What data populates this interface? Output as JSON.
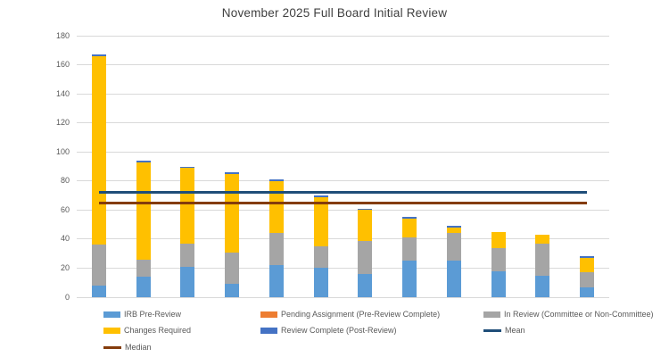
{
  "chart_data": {
    "type": "bar",
    "stacked": true,
    "title": "November 2025 Full Board Initial Review",
    "categories": [
      "",
      "",
      "",
      "",
      "",
      "",
      "",
      "",
      "",
      "",
      "",
      ""
    ],
    "series": [
      {
        "name": "IRB Pre-Review",
        "color": "#5B9BD5",
        "swatch": "rect",
        "values": [
          8,
          14,
          21,
          9,
          22,
          20,
          16,
          25,
          25,
          18,
          15,
          7
        ]
      },
      {
        "name": "Pending Assignment (Pre-Review Complete)",
        "color": "#ED7D31",
        "swatch": "rect",
        "values": [
          0,
          0,
          0,
          0,
          0,
          0,
          0,
          0,
          0,
          0,
          0,
          0
        ]
      },
      {
        "name": "In Review (Committee or Non-Committee)",
        "color": "#A5A5A5",
        "swatch": "rect",
        "values": [
          28,
          12,
          16,
          22,
          22,
          15,
          23,
          16,
          19,
          16,
          22,
          10
        ]
      },
      {
        "name": "Changes Required",
        "color": "#FFC000",
        "swatch": "rect",
        "values": [
          130,
          67,
          52,
          54,
          36,
          34,
          21,
          13,
          4,
          11,
          6,
          10
        ]
      },
      {
        "name": "Review Complete (Post-Review)",
        "color": "#4472C4",
        "swatch": "rect",
        "values": [
          1,
          1,
          1,
          1,
          1,
          1,
          1,
          1,
          1,
          0,
          0,
          1
        ]
      }
    ],
    "bar_totals": [
      167,
      94,
      90,
      86,
      81,
      70,
      61,
      55,
      49,
      45,
      43,
      28
    ],
    "lines": [
      {
        "name": "Mean",
        "color": "#1F4E79",
        "value": 72,
        "swatch": "line"
      },
      {
        "name": "Median",
        "color": "#843C0C",
        "value": 65,
        "swatch": "line"
      }
    ],
    "y_axis": {
      "min": 0,
      "max": 180,
      "step": 20,
      "tick_labels": [
        "0",
        "20",
        "40",
        "60",
        "80",
        "100",
        "120",
        "140",
        "160",
        "180"
      ]
    },
    "x_axis": {
      "tick_labels_visible": false
    },
    "grid": true,
    "legend_position": "bottom",
    "gridline_color": "#D9D9D9",
    "text_color": "#595959"
  }
}
